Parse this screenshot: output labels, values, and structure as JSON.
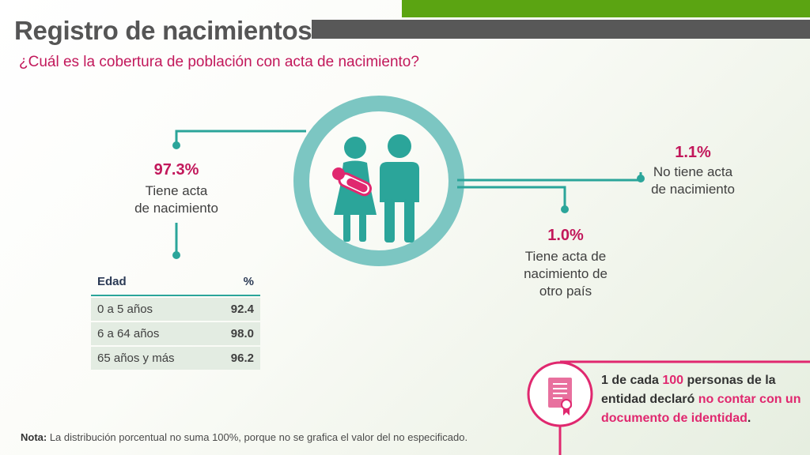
{
  "header": {
    "title": "Registro de nacimientos",
    "subtitle": "¿Cuál es la cobertura de población con acta de nacimiento?"
  },
  "stats": {
    "main": {
      "value": "97.3%",
      "line1": "Tiene acta",
      "line2": "de nacimiento"
    },
    "none": {
      "value": "1.1%",
      "line1": "No tiene acta",
      "line2": "de nacimiento"
    },
    "other": {
      "value": "1.0%",
      "line1": "Tiene acta de",
      "line2": "nacimiento de",
      "line3": "otro país"
    }
  },
  "table": {
    "col_age": "Edad",
    "col_pct": "%",
    "rows": [
      {
        "age": "0 a 5 años",
        "pct": "92.4"
      },
      {
        "age": "6 a 64 años",
        "pct": "98.0"
      },
      {
        "age": "65 años y más",
        "pct": "96.2"
      }
    ]
  },
  "callout": {
    "p1": "1 de cada ",
    "p2": "100",
    "p3": " personas de la entidad declaró ",
    "p4": "no contar con un documento de identidad",
    "p5": "."
  },
  "note": {
    "label": "Nota:",
    "text": " La distribución porcentual no suma 100%, porque no se grafica el valor del no especificado."
  },
  "icons": [
    "family-icon",
    "certificate-icon"
  ],
  "colors": {
    "teal": "#2ba59a",
    "ring": "#7cc6c2",
    "pink": "#e0286f",
    "green": "#5ba412",
    "gray": "#585858"
  }
}
